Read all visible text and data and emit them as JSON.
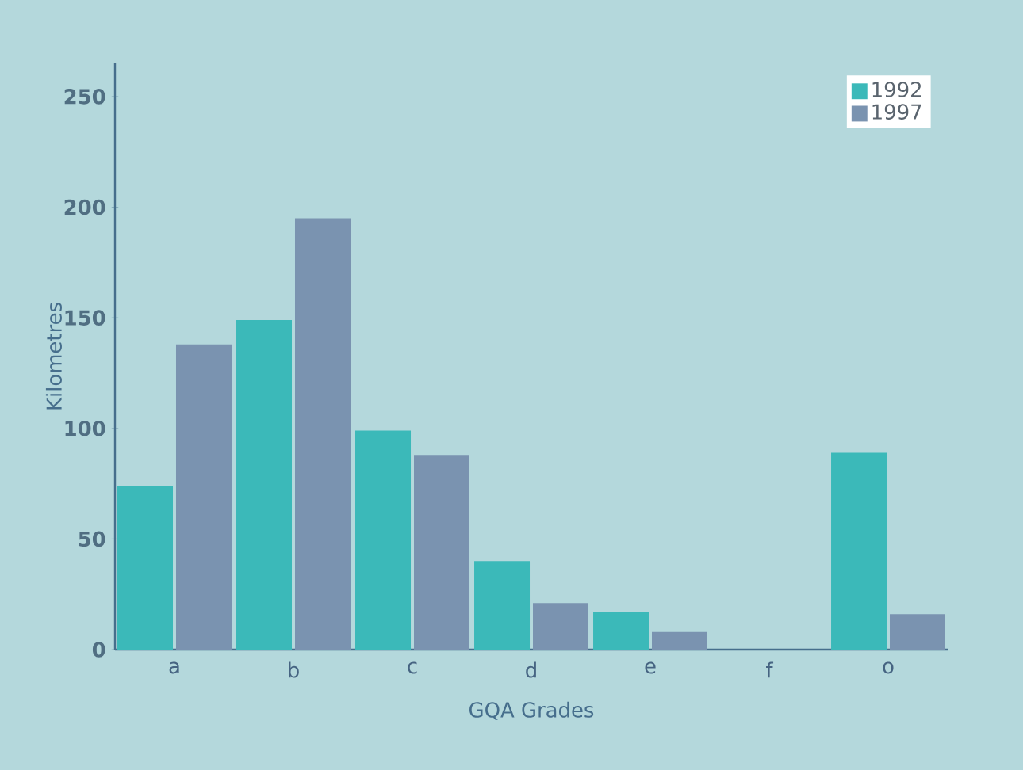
{
  "chart_data": {
    "type": "bar",
    "xlabel": "GQA Grades",
    "ylabel": "Kilometres",
    "categories": [
      "a",
      "b",
      "c",
      "d",
      "e",
      "f",
      "o"
    ],
    "series": [
      {
        "name": "1992",
        "color": "#3bb9b9",
        "values": [
          74,
          149,
          99,
          40,
          17,
          null,
          89
        ]
      },
      {
        "name": "1997",
        "color": "#7a93b0",
        "values": [
          138,
          195,
          88,
          21,
          8,
          null,
          16
        ]
      }
    ],
    "ylim": [
      0,
      265
    ],
    "yticks": [
      0,
      50,
      100,
      150,
      200,
      250
    ],
    "grid": false,
    "legend": "top right"
  }
}
